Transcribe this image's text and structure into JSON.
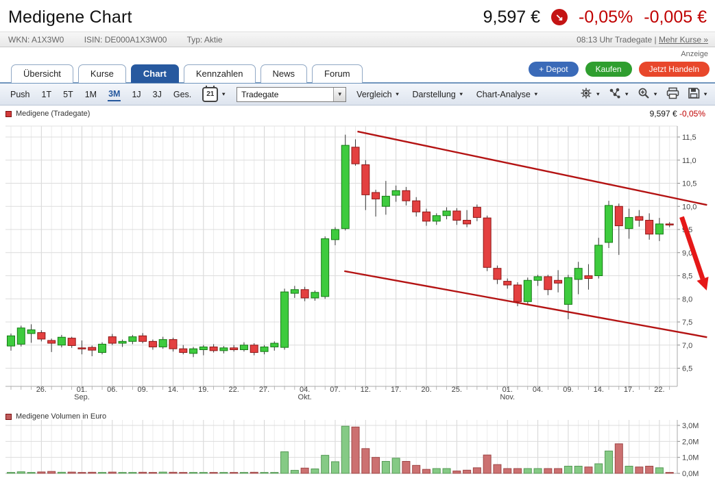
{
  "header": {
    "title": "Medigene Chart",
    "price": "9,597 €",
    "arrow_icon": "down-right-arrow",
    "change_pct": "-0,05%",
    "change_abs": "-0,005 €"
  },
  "infobar": {
    "wkn": "WKN: A1X3W0",
    "isin": "ISIN: DE000A1X3W00",
    "typ": "Typ: Aktie",
    "time_info": "08:13 Uhr Tradegate |",
    "more_link": "Mehr Kurse »"
  },
  "ad_label": "Anzeige",
  "tabs": [
    {
      "label": "Übersicht",
      "active": false
    },
    {
      "label": "Kurse",
      "active": false
    },
    {
      "label": "Chart",
      "active": true
    },
    {
      "label": "Kennzahlen",
      "active": false
    },
    {
      "label": "News",
      "active": false
    },
    {
      "label": "Forum",
      "active": false
    }
  ],
  "actions": [
    {
      "label": "+ Depot",
      "color": "#3a6ab8",
      "name": "depot-button"
    },
    {
      "label": "Kaufen",
      "color": "#2f9e2f",
      "name": "kaufen-button"
    },
    {
      "label": "Jetzt Handeln",
      "color": "#e8472b",
      "name": "jetzt-handeln-button"
    }
  ],
  "toolbar": {
    "ranges": [
      "Push",
      "1T",
      "5T",
      "1M",
      "3M",
      "1J",
      "3J",
      "Ges."
    ],
    "active_range": "3M",
    "calendar_icon_label": "21",
    "exchange_select": "Tradegate",
    "menus": [
      "Vergleich",
      "Darstellung",
      "Chart-Analyse"
    ],
    "icon_names": [
      "gear-icon",
      "share-icon",
      "zoom-in-icon",
      "print-icon",
      "save-icon"
    ]
  },
  "chart_data": {
    "type": "candlestick+volume",
    "legend": "Medigene (Tradegate)",
    "legend_price": "9,597 €",
    "legend_change": "-0,05%",
    "volume_legend": "Medigene Volumen in Euro",
    "y_axis": {
      "min": 6.5,
      "max": 11.5,
      "tick_step": 0.5,
      "tick_labels": [
        "11,5",
        "11,0",
        "10,5",
        "10,0",
        "9,5",
        "9,0",
        "8,5",
        "8,0",
        "7,5",
        "7,0",
        "6,5"
      ],
      "tick_values": [
        11.5,
        11.0,
        10.5,
        10.0,
        9.5,
        9.0,
        8.5,
        8.0,
        7.5,
        7.0,
        6.5
      ]
    },
    "volume_axis": {
      "tick_labels": [
        "3,0M",
        "2,0M",
        "1,0M",
        "0,0M"
      ],
      "tick_values": [
        3,
        2,
        1,
        0
      ],
      "unit": "M €"
    },
    "x_ticks": [
      {
        "i": 3,
        "l1": "26.",
        "l2": ""
      },
      {
        "i": 7,
        "l1": "01.",
        "l2": "Sep."
      },
      {
        "i": 10,
        "l1": "06.",
        "l2": ""
      },
      {
        "i": 13,
        "l1": "09.",
        "l2": ""
      },
      {
        "i": 16,
        "l1": "14.",
        "l2": ""
      },
      {
        "i": 19,
        "l1": "19.",
        "l2": ""
      },
      {
        "i": 22,
        "l1": "22.",
        "l2": ""
      },
      {
        "i": 25,
        "l1": "27.",
        "l2": ""
      },
      {
        "i": 29,
        "l1": "04.",
        "l2": "Okt."
      },
      {
        "i": 32,
        "l1": "07.",
        "l2": ""
      },
      {
        "i": 35,
        "l1": "12.",
        "l2": ""
      },
      {
        "i": 38,
        "l1": "17.",
        "l2": ""
      },
      {
        "i": 41,
        "l1": "20.",
        "l2": ""
      },
      {
        "i": 44,
        "l1": "25.",
        "l2": ""
      },
      {
        "i": 49,
        "l1": "01.",
        "l2": "Nov."
      },
      {
        "i": 52,
        "l1": "04.",
        "l2": ""
      },
      {
        "i": 55,
        "l1": "09.",
        "l2": ""
      },
      {
        "i": 58,
        "l1": "14.",
        "l2": ""
      },
      {
        "i": 61,
        "l1": "17.",
        "l2": ""
      },
      {
        "i": 64,
        "l1": "22.",
        "l2": ""
      }
    ],
    "candles_format": [
      "open",
      "high",
      "low",
      "close",
      "volume_M"
    ],
    "candles": [
      [
        6.98,
        7.25,
        6.88,
        7.2,
        0.06
      ],
      [
        7.02,
        7.42,
        6.97,
        7.37,
        0.1
      ],
      [
        7.25,
        7.45,
        7.05,
        7.33,
        0.06
      ],
      [
        7.27,
        7.32,
        7.08,
        7.13,
        0.09
      ],
      [
        7.1,
        7.14,
        6.85,
        7.04,
        0.12
      ],
      [
        7.0,
        7.22,
        6.95,
        7.17,
        0.07
      ],
      [
        7.15,
        7.18,
        6.94,
        6.99,
        0.08
      ],
      [
        6.94,
        7.1,
        6.8,
        6.93,
        0.05
      ],
      [
        6.95,
        6.99,
        6.76,
        6.89,
        0.07
      ],
      [
        6.84,
        7.06,
        6.8,
        7.02,
        0.06
      ],
      [
        7.18,
        7.24,
        7.0,
        7.04,
        0.08
      ],
      [
        7.04,
        7.12,
        6.96,
        7.08,
        0.05
      ],
      [
        7.08,
        7.22,
        7.02,
        7.18,
        0.05
      ],
      [
        7.2,
        7.26,
        7.04,
        7.08,
        0.07
      ],
      [
        7.08,
        7.12,
        6.9,
        6.96,
        0.06
      ],
      [
        6.96,
        7.18,
        6.92,
        7.12,
        0.08
      ],
      [
        7.12,
        7.16,
        6.86,
        6.92,
        0.07
      ],
      [
        6.92,
        7.0,
        6.8,
        6.84,
        0.05
      ],
      [
        6.82,
        6.96,
        6.74,
        6.92,
        0.06
      ],
      [
        6.9,
        7.0,
        6.78,
        6.96,
        0.06
      ],
      [
        6.96,
        7.02,
        6.84,
        6.88,
        0.05
      ],
      [
        6.88,
        6.98,
        6.82,
        6.94,
        0.04
      ],
      [
        6.94,
        7.0,
        6.86,
        6.9,
        0.05
      ],
      [
        6.9,
        7.06,
        6.86,
        7.0,
        0.06
      ],
      [
        7.0,
        7.04,
        6.78,
        6.84,
        0.07
      ],
      [
        6.86,
        7.0,
        6.8,
        6.96,
        0.05
      ],
      [
        6.96,
        7.08,
        6.88,
        7.04,
        0.06
      ],
      [
        6.95,
        8.22,
        6.9,
        8.15,
        1.35
      ],
      [
        8.12,
        8.28,
        8.02,
        8.2,
        0.19
      ],
      [
        8.2,
        8.26,
        7.95,
        8.02,
        0.33
      ],
      [
        8.02,
        8.18,
        7.96,
        8.14,
        0.28
      ],
      [
        8.05,
        9.35,
        8.0,
        9.3,
        1.13
      ],
      [
        9.28,
        9.55,
        9.16,
        9.5,
        0.73
      ],
      [
        9.52,
        11.55,
        9.48,
        11.32,
        2.95
      ],
      [
        11.28,
        11.45,
        10.88,
        10.92,
        2.9
      ],
      [
        10.9,
        11.0,
        9.92,
        10.25,
        1.55
      ],
      [
        10.3,
        10.36,
        9.78,
        10.16,
        1.0
      ],
      [
        10.0,
        10.55,
        9.82,
        10.22,
        0.75
      ],
      [
        10.24,
        10.45,
        10.1,
        10.34,
        0.95
      ],
      [
        10.34,
        10.42,
        10.02,
        10.12,
        0.75
      ],
      [
        10.12,
        10.2,
        9.78,
        9.88,
        0.5
      ],
      [
        9.88,
        9.95,
        9.58,
        9.68,
        0.25
      ],
      [
        9.68,
        9.85,
        9.6,
        9.8,
        0.3
      ],
      [
        9.8,
        9.98,
        9.72,
        9.9,
        0.3
      ],
      [
        9.9,
        9.96,
        9.6,
        9.7,
        0.15
      ],
      [
        9.7,
        9.92,
        9.55,
        9.62,
        0.2
      ],
      [
        9.98,
        10.04,
        9.68,
        9.76,
        0.35
      ],
      [
        9.75,
        9.8,
        8.6,
        8.68,
        1.15
      ],
      [
        8.66,
        8.72,
        8.32,
        8.42,
        0.55
      ],
      [
        8.38,
        8.44,
        8.22,
        8.3,
        0.3
      ],
      [
        8.3,
        8.36,
        7.84,
        7.94,
        0.3
      ],
      [
        7.94,
        8.46,
        7.88,
        8.4,
        0.3
      ],
      [
        8.4,
        8.52,
        8.28,
        8.48,
        0.3
      ],
      [
        8.48,
        8.52,
        8.08,
        8.2,
        0.3
      ],
      [
        8.4,
        8.62,
        8.14,
        8.34,
        0.3
      ],
      [
        7.88,
        8.52,
        7.56,
        8.46,
        0.45
      ],
      [
        8.42,
        8.8,
        8.1,
        8.66,
        0.45
      ],
      [
        8.5,
        8.75,
        8.2,
        8.44,
        0.4
      ],
      [
        8.5,
        9.32,
        8.44,
        9.16,
        0.6
      ],
      [
        9.22,
        10.12,
        9.1,
        10.02,
        1.4
      ],
      [
        10.0,
        10.06,
        8.95,
        9.58,
        1.85
      ],
      [
        9.52,
        9.95,
        9.3,
        9.76,
        0.45
      ],
      [
        9.78,
        9.92,
        9.56,
        9.7,
        0.4
      ],
      [
        9.7,
        9.85,
        9.28,
        9.4,
        0.45
      ],
      [
        9.4,
        9.75,
        9.25,
        9.62,
        0.35
      ],
      [
        9.62,
        9.66,
        9.55,
        9.6,
        0.03
      ]
    ],
    "annotations": {
      "channel_upper": {
        "i1": 34.2,
        "p1": 11.62,
        "i2": 68.7,
        "p2": 10.03
      },
      "channel_lower": {
        "i1": 32.9,
        "p1": 8.6,
        "i2": 68.7,
        "p2": 7.17
      },
      "arrow": {
        "i1": 66.2,
        "p1": 9.77,
        "i2": 68.4,
        "p2": 8.35
      }
    },
    "colors": {
      "candle_up": "#3ecb3e",
      "candle_up_border": "#157a15",
      "candle_down": "#e34040",
      "candle_down_border": "#8e1515",
      "volume_up": "#85ca85",
      "volume_up_border": "#569956",
      "volume_down": "#cc7171",
      "volume_down_border": "#9e4747",
      "trend_line": "#b41313",
      "arrow": "#e51818",
      "accent_red": "#c00000"
    }
  }
}
